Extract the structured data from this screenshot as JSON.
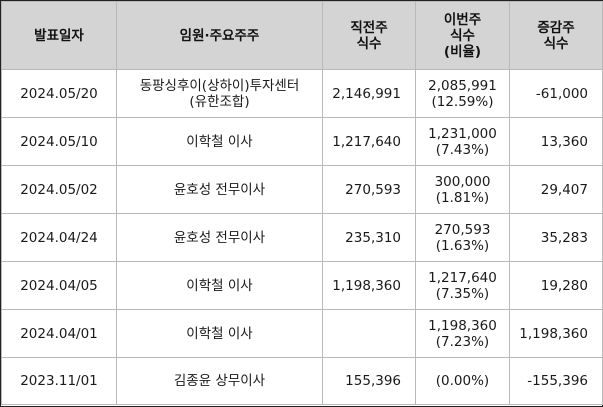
{
  "headers": [
    {
      "lines": [
        "발표일자"
      ]
    },
    {
      "lines": [
        "임원·주요주주"
      ]
    },
    {
      "lines": [
        "직전주",
        "식수"
      ]
    },
    {
      "lines": [
        "이번주",
        "식수",
        "(비율)"
      ]
    },
    {
      "lines": [
        "증감주",
        "식수"
      ]
    }
  ],
  "rows": [
    {
      "date": "2024.05/20",
      "holder": [
        "동팡싱후이(상하이)투자센터",
        "(유한조합)"
      ],
      "prev": "2,146,991",
      "curr": "2,085,991",
      "ratio": "(12.59%)",
      "change": "-61,000"
    },
    {
      "date": "2024.05/10",
      "holder": [
        "이학철 이사"
      ],
      "prev": "1,217,640",
      "curr": "1,231,000",
      "ratio": "(7.43%)",
      "change": "13,360"
    },
    {
      "date": "2024.05/02",
      "holder": [
        "윤호성 전무이사"
      ],
      "prev": "270,593",
      "curr": "300,000",
      "ratio": "(1.81%)",
      "change": "29,407"
    },
    {
      "date": "2024.04/24",
      "holder": [
        "윤호성 전무이사"
      ],
      "prev": "235,310",
      "curr": "270,593",
      "ratio": "(1.63%)",
      "change": "35,283"
    },
    {
      "date": "2024.04/05",
      "holder": [
        "이학철 이사"
      ],
      "prev": "1,198,360",
      "curr": "1,217,640",
      "ratio": "(7.35%)",
      "change": "19,280"
    },
    {
      "date": "2024.04/01",
      "holder": [
        "이학철 이사"
      ],
      "prev": "",
      "curr": "1,198,360",
      "ratio": "(7.23%)",
      "change": "1,198,360"
    },
    {
      "date": "2023.11/01",
      "holder": [
        "김종윤 상무이사"
      ],
      "prev": "155,396",
      "curr": "",
      "ratio": "(0.00%)",
      "change": "-155,396"
    }
  ]
}
